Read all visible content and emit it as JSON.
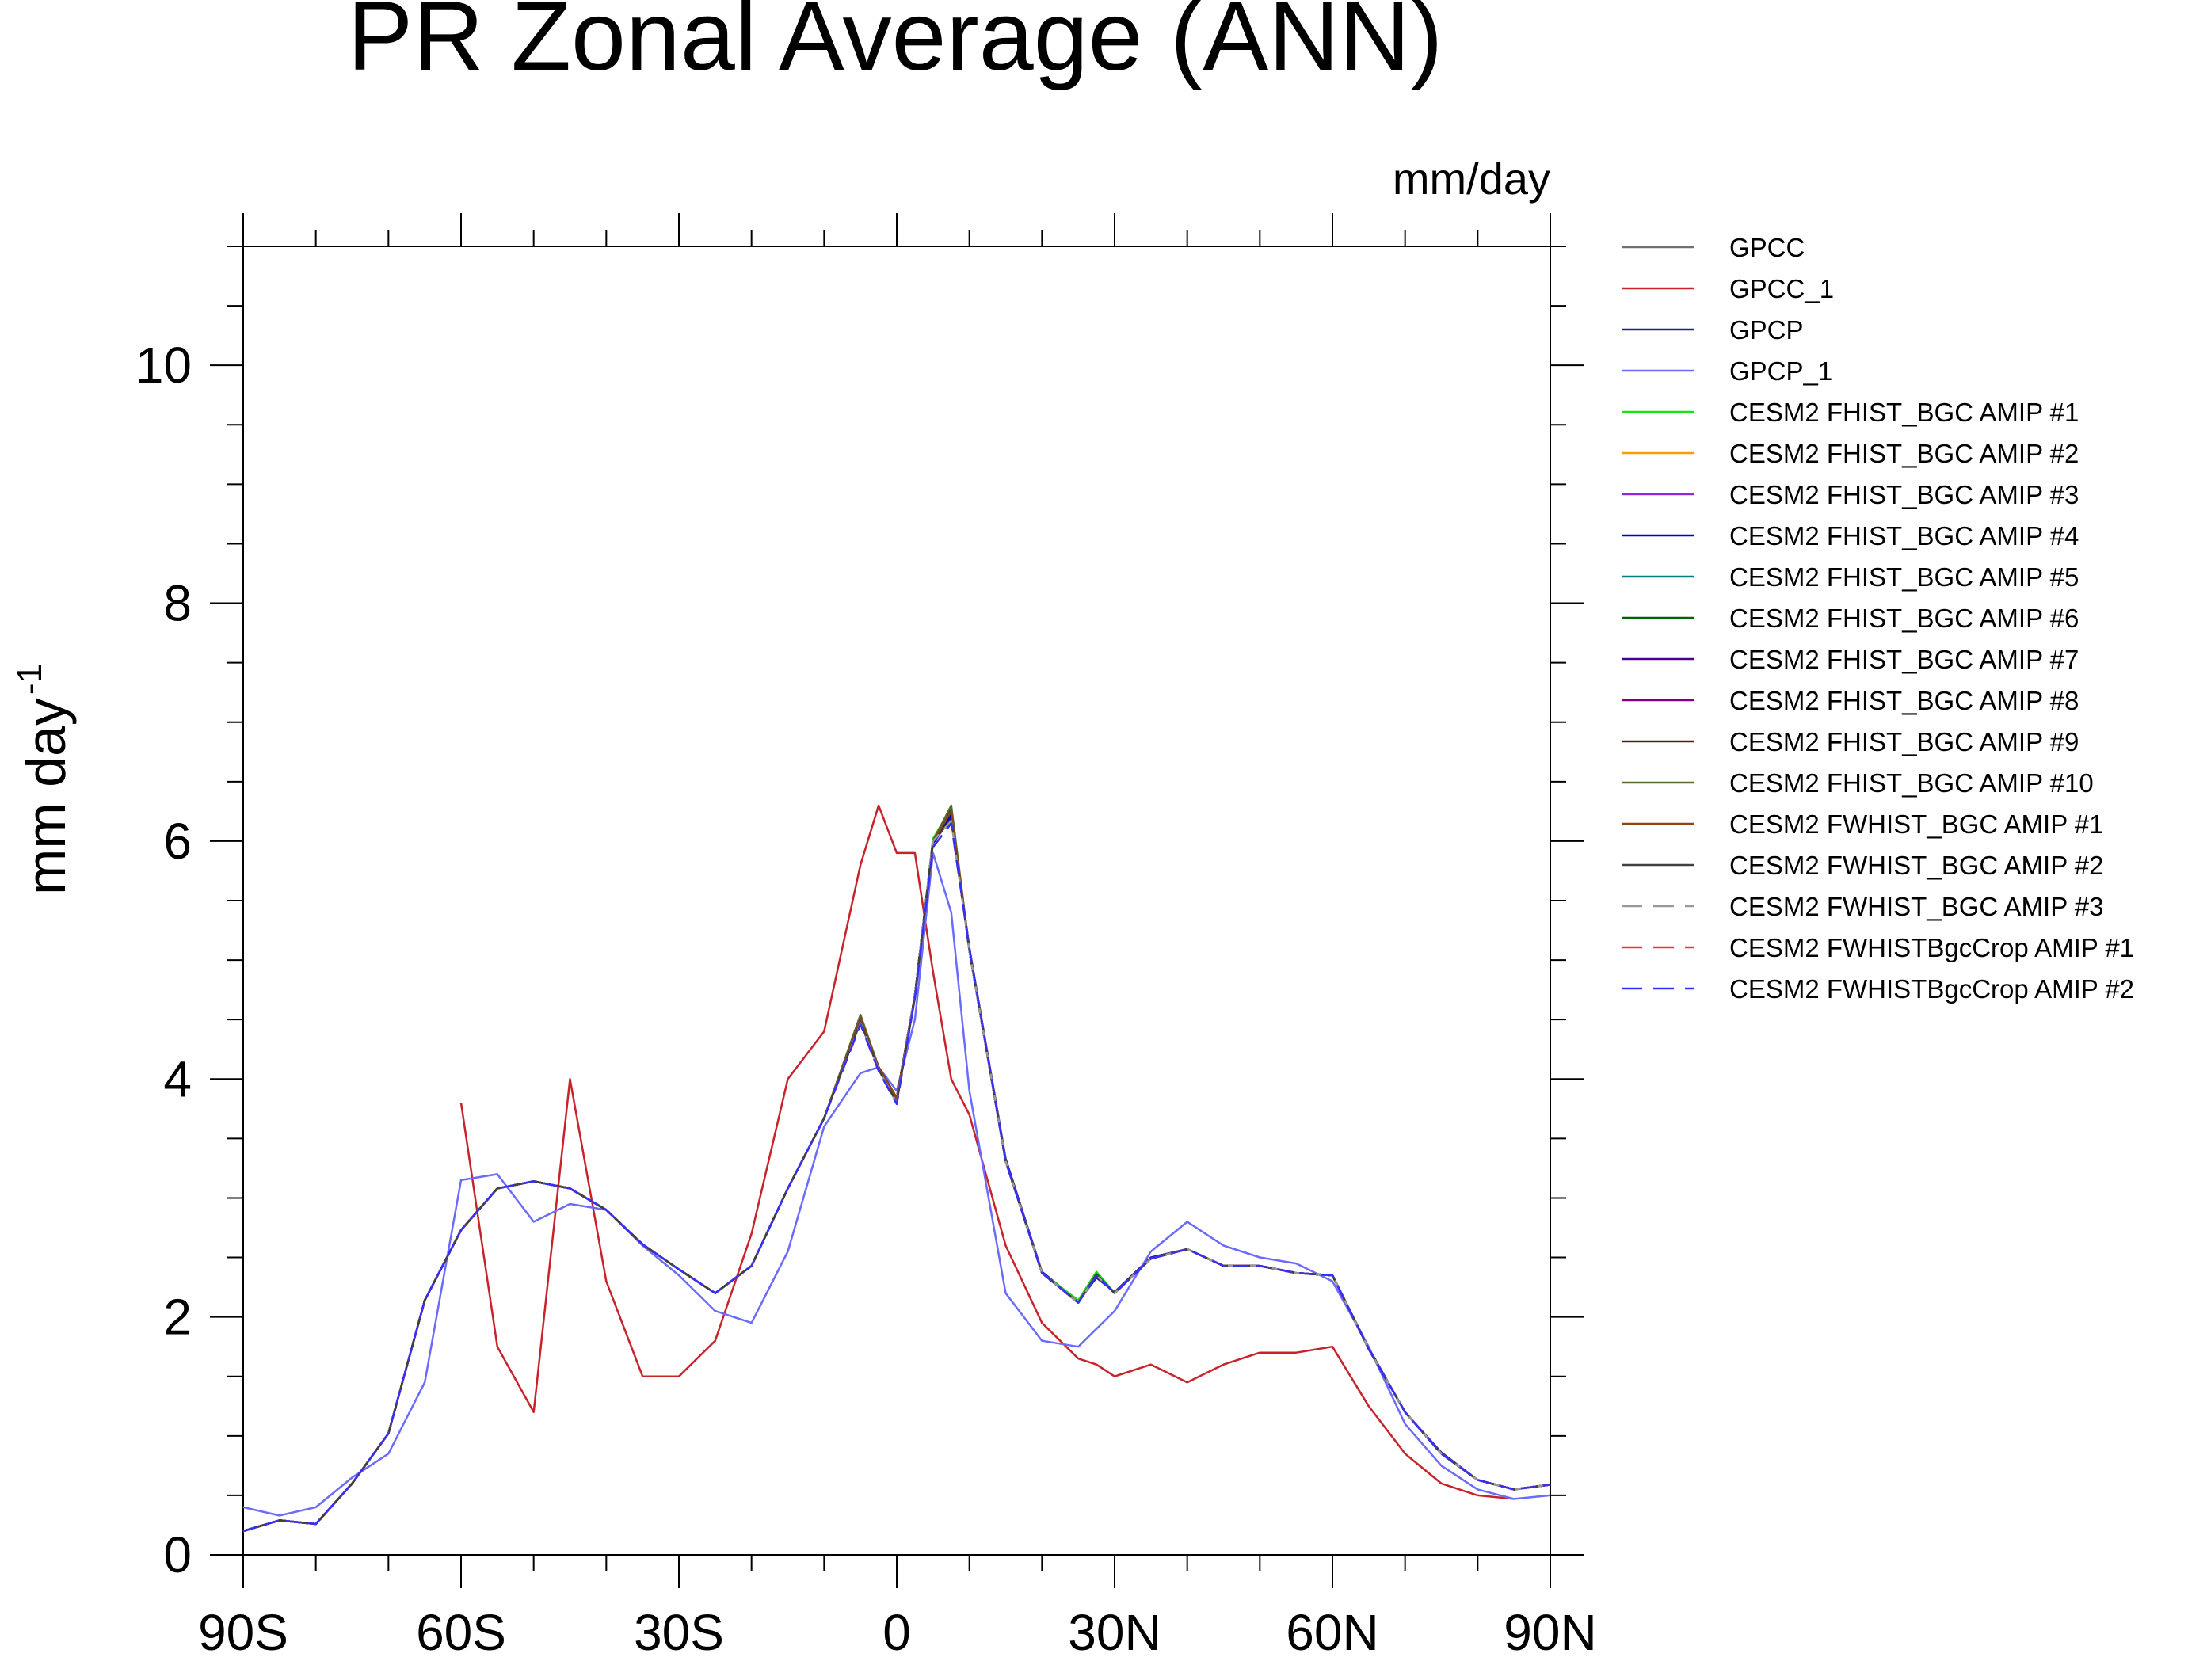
{
  "chart_data": {
    "type": "line",
    "title": "PR Zonal Average (ANN)",
    "units_label": "mm/day",
    "ylabel": "mm day",
    "ylabel_exponent": "-1",
    "x": [
      -90,
      -85,
      -80,
      -75,
      -70,
      -65,
      -60,
      -55,
      -50,
      -45,
      -40,
      -35,
      -30,
      -25,
      -20,
      -15,
      -10,
      -5,
      -2.5,
      0,
      2.5,
      5,
      7.5,
      10,
      15,
      20,
      25,
      27.5,
      30,
      35,
      40,
      45,
      50,
      55,
      60,
      65,
      70,
      75,
      80,
      85,
      90
    ],
    "xlim": [
      -90,
      90
    ],
    "ylim": [
      0,
      11
    ],
    "xticks": [
      {
        "value": -90,
        "label": "90S"
      },
      {
        "value": -60,
        "label": "60S"
      },
      {
        "value": -30,
        "label": "30S"
      },
      0,
      {
        "value": 30,
        "label": "30N"
      },
      {
        "value": 60,
        "label": "60N"
      },
      {
        "value": 90,
        "label": "90N"
      }
    ],
    "xminorticks": [
      -80,
      -70,
      -50,
      -40,
      -20,
      -10,
      10,
      20,
      40,
      50,
      70,
      80
    ],
    "yticks": [
      0,
      2,
      4,
      6,
      8,
      10
    ],
    "yminorticks": [
      0.5,
      1,
      1.5,
      2.5,
      3,
      3.5,
      4.5,
      5,
      5.5,
      6.5,
      7,
      7.5,
      8.5,
      9,
      9.5,
      10.5,
      11
    ],
    "series": [
      {
        "name": "GPCC",
        "color": "#707070",
        "dash": false,
        "values": [
          0.2,
          0.29,
          0.26,
          0.6,
          1.02,
          2.14,
          2.73,
          3.08,
          3.14,
          3.08,
          2.9,
          2.61,
          2.4,
          2.2,
          2.43,
          3.08,
          3.67,
          4.51,
          4.1,
          3.84,
          4.7,
          6.0,
          6.25,
          5.08,
          3.31,
          2.37,
          2.12,
          2.35,
          2.2,
          2.49,
          2.57,
          2.43,
          2.43,
          2.37,
          2.35,
          1.73,
          1.2,
          0.85,
          0.63,
          0.55,
          0.59
        ]
      },
      {
        "name": "GPCC_1",
        "color": "#c8232b",
        "dash": false,
        "values": [
          null,
          null,
          null,
          null,
          null,
          null,
          3.8,
          1.75,
          1.2,
          4.0,
          2.3,
          1.5,
          1.5,
          1.8,
          2.7,
          4.0,
          4.4,
          5.8,
          6.3,
          5.9,
          5.9,
          4.9,
          4.0,
          3.7,
          2.6,
          1.95,
          1.65,
          1.6,
          1.5,
          1.6,
          1.45,
          1.6,
          1.7,
          1.7,
          1.75,
          1.25,
          0.85,
          0.6,
          0.5,
          0.47,
          null
        ]
      },
      {
        "name": "GPCP",
        "color": "#1c1ca0",
        "dash": false,
        "values": [
          0.2,
          0.29,
          0.26,
          0.6,
          1.02,
          2.14,
          2.73,
          3.08,
          3.14,
          3.08,
          2.9,
          2.61,
          2.4,
          2.2,
          2.43,
          3.08,
          3.67,
          4.5,
          4.1,
          3.82,
          4.68,
          5.98,
          6.2,
          5.1,
          3.33,
          2.38,
          2.13,
          2.33,
          2.21,
          2.5,
          2.57,
          2.43,
          2.43,
          2.37,
          2.35,
          1.74,
          1.2,
          0.86,
          0.63,
          0.55,
          0.59
        ]
      },
      {
        "name": "GPCP_1",
        "color": "#6b6bff",
        "dash": false,
        "values": [
          0.4,
          0.33,
          0.4,
          0.65,
          0.85,
          1.45,
          3.15,
          3.2,
          2.8,
          2.95,
          2.9,
          2.6,
          2.35,
          2.05,
          1.95,
          2.55,
          3.6,
          4.05,
          4.1,
          3.9,
          4.5,
          5.9,
          5.4,
          3.9,
          2.2,
          1.8,
          1.75,
          1.9,
          2.05,
          2.55,
          2.8,
          2.6,
          2.5,
          2.45,
          2.3,
          1.75,
          1.1,
          0.75,
          0.55,
          0.47,
          0.5
        ]
      },
      {
        "name": "CESM2 FHIST_BGC AMIP #1",
        "color": "#19e019",
        "dash": false,
        "values": [
          0.2,
          0.29,
          0.26,
          0.6,
          1.02,
          2.14,
          2.73,
          3.08,
          3.14,
          3.08,
          2.9,
          2.61,
          2.4,
          2.2,
          2.43,
          3.08,
          3.67,
          4.52,
          4.1,
          3.84,
          4.7,
          6.02,
          6.28,
          5.08,
          3.31,
          2.37,
          2.14,
          2.38,
          2.2,
          2.49,
          2.57,
          2.43,
          2.43,
          2.37,
          2.35,
          1.73,
          1.2,
          0.85,
          0.63,
          0.55,
          0.59
        ]
      },
      {
        "name": "CESM2 FHIST_BGC AMIP #2",
        "color": "#ff9a00",
        "dash": false,
        "values": [
          0.2,
          0.29,
          0.26,
          0.6,
          1.02,
          2.14,
          2.73,
          3.08,
          3.14,
          3.08,
          2.9,
          2.61,
          2.4,
          2.2,
          2.43,
          3.08,
          3.67,
          4.51,
          4.1,
          3.84,
          4.7,
          6.0,
          6.25,
          5.08,
          3.31,
          2.37,
          2.12,
          2.35,
          2.2,
          2.49,
          2.57,
          2.43,
          2.43,
          2.37,
          2.35,
          1.73,
          1.2,
          0.85,
          0.63,
          0.55,
          0.59
        ]
      },
      {
        "name": "CESM2 FHIST_BGC AMIP #3",
        "color": "#8a2be2",
        "dash": false,
        "values": [
          0.2,
          0.29,
          0.26,
          0.6,
          1.02,
          2.14,
          2.73,
          3.08,
          3.14,
          3.08,
          2.9,
          2.61,
          2.4,
          2.2,
          2.43,
          3.08,
          3.67,
          4.5,
          4.1,
          3.84,
          4.7,
          6.0,
          6.24,
          5.08,
          3.31,
          2.37,
          2.12,
          2.35,
          2.2,
          2.49,
          2.57,
          2.43,
          2.43,
          2.37,
          2.35,
          1.73,
          1.2,
          0.85,
          0.63,
          0.55,
          0.59
        ]
      },
      {
        "name": "CESM2 FHIST_BGC AMIP #4",
        "color": "#0000c8",
        "dash": false,
        "values": [
          0.2,
          0.29,
          0.26,
          0.6,
          1.02,
          2.14,
          2.73,
          3.08,
          3.14,
          3.08,
          2.9,
          2.61,
          2.4,
          2.2,
          2.43,
          3.08,
          3.67,
          4.51,
          4.1,
          3.84,
          4.7,
          6.0,
          6.22,
          5.1,
          3.31,
          2.37,
          2.12,
          2.35,
          2.2,
          2.49,
          2.57,
          2.43,
          2.43,
          2.37,
          2.35,
          1.73,
          1.2,
          0.85,
          0.63,
          0.55,
          0.59
        ]
      },
      {
        "name": "CESM2 FHIST_BGC AMIP #5",
        "color": "#008080",
        "dash": false,
        "values": [
          0.2,
          0.29,
          0.26,
          0.6,
          1.02,
          2.14,
          2.73,
          3.08,
          3.14,
          3.08,
          2.9,
          2.61,
          2.4,
          2.2,
          2.43,
          3.08,
          3.67,
          4.51,
          4.1,
          3.84,
          4.7,
          6.0,
          6.25,
          5.08,
          3.31,
          2.37,
          2.12,
          2.35,
          2.2,
          2.49,
          2.57,
          2.43,
          2.43,
          2.37,
          2.35,
          1.73,
          1.2,
          0.85,
          0.63,
          0.55,
          0.59
        ]
      },
      {
        "name": "CESM2 FHIST_BGC AMIP #6",
        "color": "#006400",
        "dash": false,
        "values": [
          0.2,
          0.29,
          0.26,
          0.6,
          1.02,
          2.14,
          2.73,
          3.08,
          3.14,
          3.08,
          2.9,
          2.61,
          2.4,
          2.2,
          2.43,
          3.08,
          3.67,
          4.53,
          4.1,
          3.84,
          4.7,
          6.0,
          6.27,
          5.08,
          3.31,
          2.37,
          2.12,
          2.36,
          2.2,
          2.49,
          2.57,
          2.43,
          2.43,
          2.37,
          2.35,
          1.73,
          1.2,
          0.85,
          0.63,
          0.55,
          0.59
        ]
      },
      {
        "name": "CESM2 FHIST_BGC AMIP #7",
        "color": "#4b0090",
        "dash": false,
        "values": [
          0.2,
          0.29,
          0.26,
          0.6,
          1.02,
          2.14,
          2.73,
          3.08,
          3.14,
          3.08,
          2.9,
          2.61,
          2.4,
          2.2,
          2.43,
          3.08,
          3.67,
          4.51,
          4.1,
          3.84,
          4.7,
          6.0,
          6.25,
          5.08,
          3.31,
          2.37,
          2.12,
          2.35,
          2.2,
          2.49,
          2.57,
          2.43,
          2.43,
          2.37,
          2.35,
          1.73,
          1.2,
          0.85,
          0.63,
          0.55,
          0.59
        ]
      },
      {
        "name": "CESM2 FHIST_BGC AMIP #8",
        "color": "#800080",
        "dash": false,
        "values": [
          0.2,
          0.29,
          0.26,
          0.6,
          1.02,
          2.14,
          2.73,
          3.08,
          3.14,
          3.08,
          2.9,
          2.61,
          2.4,
          2.2,
          2.43,
          3.08,
          3.67,
          4.51,
          4.1,
          3.84,
          4.7,
          6.0,
          6.25,
          5.08,
          3.31,
          2.37,
          2.12,
          2.35,
          2.2,
          2.49,
          2.57,
          2.43,
          2.43,
          2.37,
          2.35,
          1.73,
          1.2,
          0.85,
          0.63,
          0.55,
          0.59
        ]
      },
      {
        "name": "CESM2 FHIST_BGC AMIP #9",
        "color": "#5a1a1a",
        "dash": false,
        "values": [
          0.2,
          0.29,
          0.26,
          0.6,
          1.02,
          2.14,
          2.73,
          3.08,
          3.14,
          3.08,
          2.9,
          2.61,
          2.4,
          2.2,
          2.43,
          3.08,
          3.67,
          4.51,
          4.1,
          3.84,
          4.7,
          6.0,
          6.25,
          5.08,
          3.31,
          2.37,
          2.12,
          2.35,
          2.2,
          2.49,
          2.57,
          2.43,
          2.43,
          2.37,
          2.35,
          1.73,
          1.2,
          0.85,
          0.63,
          0.55,
          0.59
        ]
      },
      {
        "name": "CESM2 FHIST_BGC AMIP #10",
        "color": "#556b2f",
        "dash": false,
        "values": [
          0.2,
          0.29,
          0.26,
          0.6,
          1.02,
          2.14,
          2.73,
          3.08,
          3.14,
          3.08,
          2.9,
          2.61,
          2.4,
          2.2,
          2.43,
          3.08,
          3.67,
          4.54,
          4.1,
          3.84,
          4.7,
          6.0,
          6.3,
          5.08,
          3.31,
          2.37,
          2.12,
          2.35,
          2.2,
          2.49,
          2.57,
          2.43,
          2.43,
          2.37,
          2.35,
          1.73,
          1.2,
          0.85,
          0.63,
          0.55,
          0.59
        ]
      },
      {
        "name": "CESM2 FWHIST_BGC AMIP #1",
        "color": "#8b4513",
        "dash": false,
        "values": [
          0.2,
          0.29,
          0.26,
          0.6,
          1.02,
          2.14,
          2.73,
          3.08,
          3.14,
          3.08,
          2.9,
          2.61,
          2.4,
          2.2,
          2.43,
          3.08,
          3.67,
          4.51,
          4.1,
          3.84,
          4.7,
          6.0,
          6.25,
          5.08,
          3.31,
          2.37,
          2.12,
          2.35,
          2.2,
          2.49,
          2.57,
          2.43,
          2.43,
          2.37,
          2.35,
          1.73,
          1.2,
          0.85,
          0.63,
          0.55,
          0.59
        ]
      },
      {
        "name": "CESM2 FWHIST_BGC AMIP #2",
        "color": "#404040",
        "dash": false,
        "values": [
          0.2,
          0.29,
          0.26,
          0.6,
          1.02,
          2.14,
          2.73,
          3.08,
          3.14,
          3.08,
          2.9,
          2.61,
          2.4,
          2.2,
          2.43,
          3.08,
          3.67,
          4.48,
          4.08,
          3.8,
          4.7,
          6.0,
          6.18,
          5.08,
          3.31,
          2.37,
          2.12,
          2.35,
          2.2,
          2.49,
          2.57,
          2.43,
          2.43,
          2.37,
          2.35,
          1.73,
          1.2,
          0.85,
          0.63,
          0.55,
          0.59
        ]
      },
      {
        "name": "CESM2 FWHIST_BGC AMIP #3",
        "color": "#999999",
        "dash": true,
        "values": [
          0.2,
          0.29,
          0.26,
          0.6,
          1.02,
          2.14,
          2.73,
          3.08,
          3.14,
          3.08,
          2.9,
          2.61,
          2.4,
          2.2,
          2.43,
          3.08,
          3.67,
          4.47,
          4.08,
          3.8,
          4.7,
          6.0,
          6.17,
          5.08,
          3.31,
          2.37,
          2.12,
          2.35,
          2.2,
          2.49,
          2.57,
          2.43,
          2.43,
          2.37,
          2.35,
          1.73,
          1.2,
          0.85,
          0.63,
          0.55,
          0.59
        ]
      },
      {
        "name": "CESM2 FWHISTBgcCrop AMIP #1",
        "color": "#ff3030",
        "dash": true,
        "values": [
          0.2,
          0.29,
          0.26,
          0.6,
          1.02,
          2.14,
          2.73,
          3.08,
          3.14,
          3.08,
          2.9,
          2.61,
          2.4,
          2.2,
          2.43,
          3.08,
          3.67,
          4.46,
          4.07,
          3.79,
          4.68,
          5.95,
          6.15,
          5.1,
          3.31,
          2.37,
          2.12,
          2.35,
          2.2,
          2.49,
          2.57,
          2.43,
          2.43,
          2.37,
          2.35,
          1.73,
          1.2,
          0.85,
          0.63,
          0.55,
          0.59
        ]
      },
      {
        "name": "CESM2 FWHISTBgcCrop AMIP #2",
        "color": "#3030ff",
        "dash": true,
        "values": [
          0.2,
          0.29,
          0.26,
          0.6,
          1.02,
          2.14,
          2.73,
          3.08,
          3.14,
          3.08,
          2.9,
          2.61,
          2.4,
          2.2,
          2.43,
          3.08,
          3.67,
          4.46,
          4.07,
          3.79,
          4.68,
          5.95,
          6.15,
          5.1,
          3.31,
          2.37,
          2.12,
          2.35,
          2.2,
          2.49,
          2.57,
          2.43,
          2.43,
          2.37,
          2.35,
          1.73,
          1.2,
          0.85,
          0.63,
          0.55,
          0.59
        ]
      }
    ]
  }
}
